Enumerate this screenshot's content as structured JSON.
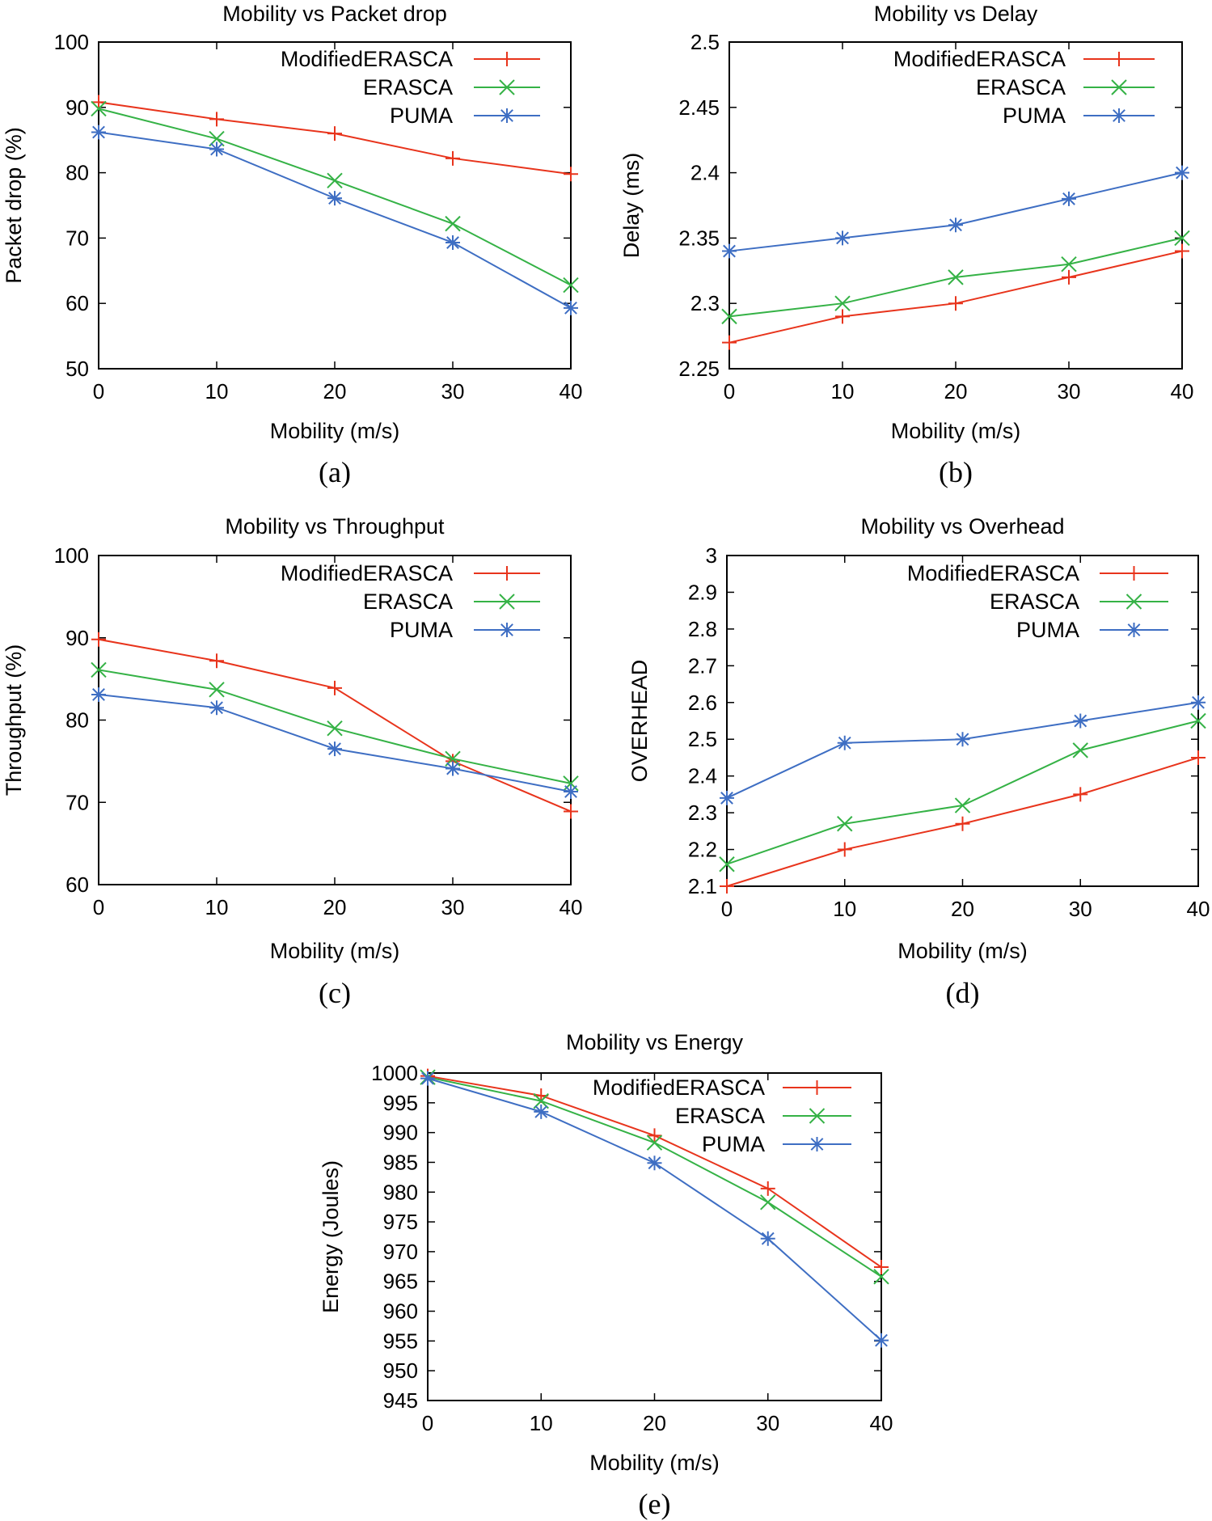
{
  "colors": {
    "ModifiedERASCA": "#e8341c",
    "ERASCA": "#35b246",
    "PUMA": "#3e6ec3"
  },
  "chart_data": [
    {
      "id": "packet-drop",
      "type": "line",
      "title": "Mobility vs Packet drop",
      "xlabel": "Mobility (m/s)",
      "ylabel": "Packet drop (%)",
      "caption": "(a)",
      "x": [
        0,
        10,
        20,
        30,
        40
      ],
      "xticks": [
        "0",
        "10",
        "20",
        "30",
        "40"
      ],
      "yticks": [
        "50",
        "60",
        "70",
        "80",
        "90",
        "100"
      ],
      "xlim": [
        0,
        40
      ],
      "ylim": [
        50,
        100
      ],
      "legend_position": "top-right",
      "series": [
        {
          "name": "ModifiedERASCA",
          "marker": "plus",
          "values": [
            90.8,
            88.2,
            86,
            82.2,
            79.8
          ]
        },
        {
          "name": "ERASCA",
          "marker": "cross",
          "values": [
            89.8,
            85.2,
            78.8,
            72.2,
            62.8
          ]
        },
        {
          "name": "PUMA",
          "marker": "star",
          "values": [
            86.2,
            83.6,
            76.1,
            69.3,
            59.3
          ]
        }
      ]
    },
    {
      "id": "delay",
      "type": "line",
      "title": "Mobility vs Delay",
      "xlabel": "Mobility (m/s)",
      "ylabel": "Delay (ms)",
      "caption": "(b)",
      "x": [
        0,
        10,
        20,
        30,
        40
      ],
      "xticks": [
        "0",
        "10",
        "20",
        "30",
        "40"
      ],
      "yticks": [
        "2.25",
        "2.3",
        "2.35",
        "2.4",
        "2.45",
        "2.5"
      ],
      "xlim": [
        0,
        40
      ],
      "ylim": [
        2.25,
        2.5
      ],
      "legend_position": "top-right",
      "series": [
        {
          "name": "ModifiedERASCA",
          "marker": "plus",
          "values": [
            2.27,
            2.29,
            2.3,
            2.32,
            2.34
          ]
        },
        {
          "name": "ERASCA",
          "marker": "cross",
          "values": [
            2.29,
            2.3,
            2.32,
            2.33,
            2.35
          ]
        },
        {
          "name": "PUMA",
          "marker": "star",
          "values": [
            2.34,
            2.35,
            2.36,
            2.38,
            2.4
          ]
        }
      ]
    },
    {
      "id": "throughput",
      "type": "line",
      "title": "Mobility vs Throughput",
      "xlabel": "Mobility (m/s)",
      "ylabel": "Throughput (%)",
      "caption": "(c)",
      "x": [
        0,
        10,
        20,
        30,
        40
      ],
      "xticks": [
        "0",
        "10",
        "20",
        "30",
        "40"
      ],
      "yticks": [
        "60",
        "70",
        "80",
        "90",
        "100"
      ],
      "xlim": [
        0,
        40
      ],
      "ylim": [
        60,
        100
      ],
      "legend_position": "top-right",
      "series": [
        {
          "name": "ModifiedERASCA",
          "marker": "plus",
          "values": [
            89.8,
            87.2,
            83.9,
            75,
            68.9
          ]
        },
        {
          "name": "ERASCA",
          "marker": "cross",
          "values": [
            86.1,
            83.7,
            79,
            75.3,
            72.3
          ]
        },
        {
          "name": "PUMA",
          "marker": "star",
          "values": [
            83.1,
            81.5,
            76.5,
            74.1,
            71.3
          ]
        }
      ]
    },
    {
      "id": "overhead",
      "type": "line",
      "title": "Mobility vs Overhead",
      "xlabel": "Mobility (m/s)",
      "ylabel": "OVERHEAD",
      "caption": "(d)",
      "x": [
        0,
        10,
        20,
        30,
        40
      ],
      "xticks": [
        "0",
        "10",
        "20",
        "30",
        "40"
      ],
      "yticks": [
        "2.1",
        "2.2",
        "2.3",
        "2.4",
        "2.5",
        "2.6",
        "2.7",
        "2.8",
        "2.9",
        "3"
      ],
      "xlim": [
        0,
        40
      ],
      "ylim": [
        2.1,
        3.0
      ],
      "legend_position": "top-right",
      "series": [
        {
          "name": "ModifiedERASCA",
          "marker": "plus",
          "values": [
            2.1,
            2.2,
            2.27,
            2.35,
            2.45
          ]
        },
        {
          "name": "ERASCA",
          "marker": "cross",
          "values": [
            2.16,
            2.27,
            2.32,
            2.47,
            2.55
          ]
        },
        {
          "name": "PUMA",
          "marker": "star",
          "values": [
            2.34,
            2.49,
            2.5,
            2.55,
            2.6
          ]
        }
      ]
    },
    {
      "id": "energy",
      "type": "line",
      "title": "Mobility vs Energy",
      "xlabel": "Mobility (m/s)",
      "ylabel": "Energy (Joules)",
      "caption": "(e)",
      "x": [
        0,
        10,
        20,
        30,
        40
      ],
      "xticks": [
        "0",
        "10",
        "20",
        "30",
        "40"
      ],
      "yticks": [
        "945",
        "950",
        "955",
        "960",
        "965",
        "970",
        "975",
        "980",
        "985",
        "990",
        "995",
        "1000"
      ],
      "xlim": [
        0,
        40
      ],
      "ylim": [
        945,
        1000
      ],
      "legend_position": "top-right",
      "series": [
        {
          "name": "ModifiedERASCA",
          "marker": "plus",
          "values": [
            999.5,
            996.2,
            989.5,
            980.6,
            967.4
          ]
        },
        {
          "name": "ERASCA",
          "marker": "cross",
          "values": [
            999.3,
            995.3,
            988.3,
            978.3,
            965.8
          ]
        },
        {
          "name": "PUMA",
          "marker": "star",
          "values": [
            999.1,
            993.5,
            984.9,
            972.2,
            955.1
          ]
        }
      ]
    }
  ]
}
